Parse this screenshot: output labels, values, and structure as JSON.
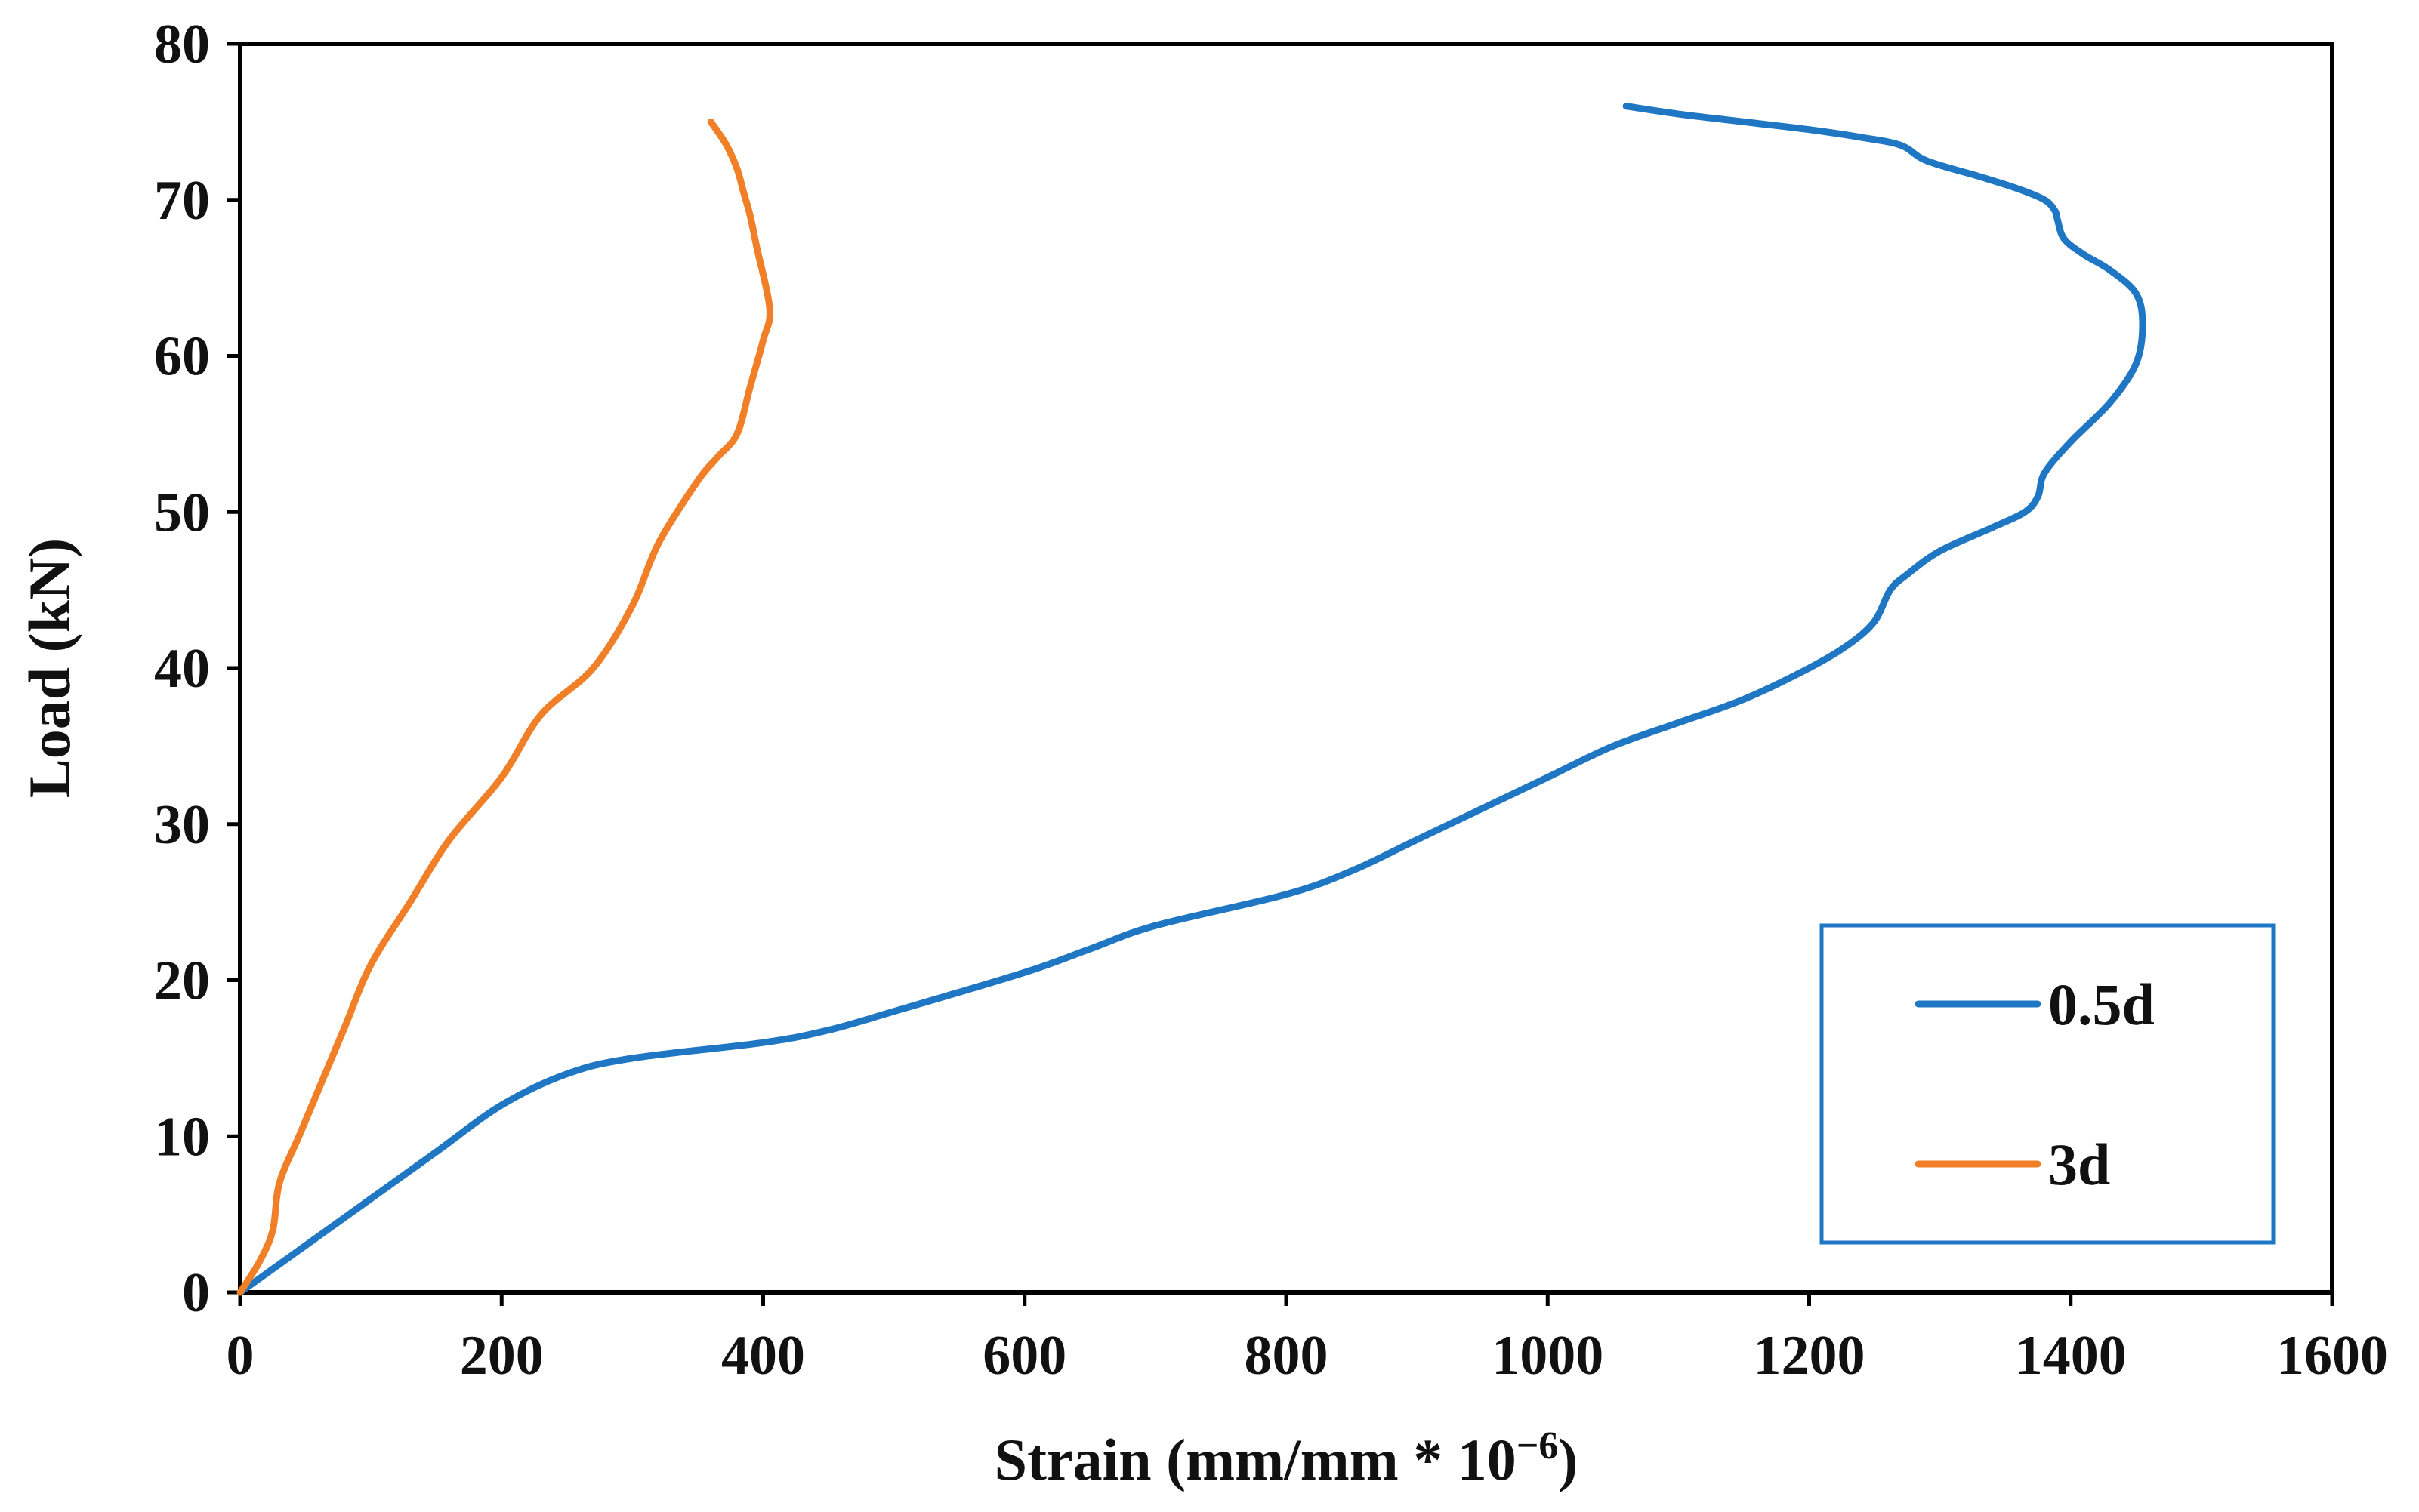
{
  "chart_data": {
    "type": "line",
    "title": "",
    "xlabel": "Strain (mm/mm * 10",
    "xlabel_exponent": "−6",
    "xlabel_close": ")",
    "ylabel": "Load (kN)",
    "xlim": [
      0,
      1600
    ],
    "ylim": [
      0,
      80
    ],
    "xticks": [
      0,
      200,
      400,
      600,
      800,
      1000,
      1200,
      1400,
      1600
    ],
    "yticks": [
      0,
      10,
      20,
      30,
      40,
      50,
      60,
      70,
      80
    ],
    "grid": false,
    "legend_position": "bottom-right",
    "series": [
      {
        "name": "0.5d",
        "color": "#1f77c4",
        "x": [
          0,
          50,
          100,
          150,
          200,
          250,
          300,
          400,
          450,
          500,
          600,
          650,
          700,
          800,
          850,
          900,
          950,
          1000,
          1050,
          1100,
          1150,
          1200,
          1230,
          1250,
          1262,
          1275,
          1300,
          1340,
          1365,
          1375,
          1380,
          1400,
          1430,
          1450,
          1455,
          1450,
          1430,
          1410,
          1395,
          1390,
          1388,
          1380,
          1360,
          1330,
          1290,
          1270,
          1240,
          1200,
          1150,
          1100,
          1060
        ],
        "y": [
          0,
          3,
          6,
          9,
          12,
          14,
          15,
          16,
          16.8,
          18,
          20.5,
          22,
          23.5,
          25.5,
          27,
          29,
          31,
          33,
          35,
          36.5,
          38,
          40,
          41.5,
          43,
          45,
          46,
          47.5,
          49,
          50,
          51,
          52.5,
          54.5,
          57,
          59.5,
          62,
          64,
          65.5,
          66.5,
          67.5,
          68.7,
          69.3,
          70,
          70.7,
          71.5,
          72.5,
          73.5,
          74,
          74.5,
          75,
          75.5,
          76
        ]
      },
      {
        "name": "3d",
        "color": "#f07f27",
        "x": [
          0,
          15,
          25,
          30,
          45,
          60,
          80,
          100,
          130,
          160,
          200,
          230,
          270,
          300,
          320,
          350,
          365,
          380,
          390,
          400,
          405,
          395,
          390,
          385,
          380,
          372,
          360
        ],
        "y": [
          0,
          2,
          4,
          7,
          10,
          13,
          17,
          21,
          25,
          29,
          33,
          37,
          40,
          44,
          48,
          52,
          53.5,
          55,
          58,
          61,
          63,
          67,
          69,
          70.5,
          72,
          73.5,
          75
        ]
      }
    ]
  }
}
